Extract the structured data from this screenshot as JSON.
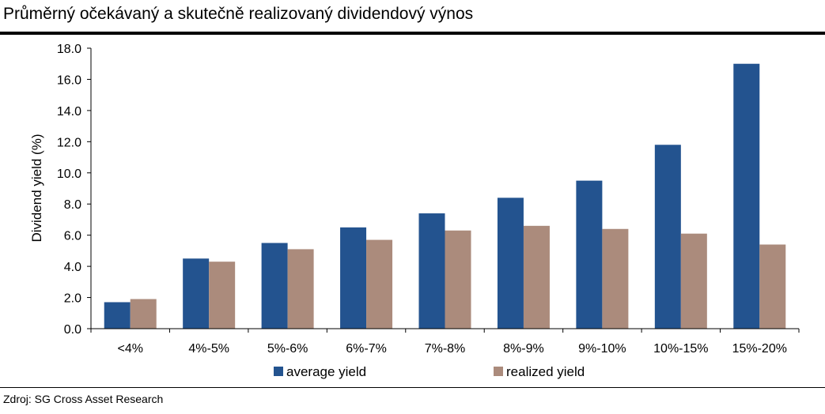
{
  "header": {
    "title": "Průměrný očekávaný a skutečně realizovaný dividendový výnos"
  },
  "footer": {
    "source": "Zdroj: SG Cross Asset Research"
  },
  "colors": {
    "average_yield": "#23538f",
    "realized_yield": "#ab8b7c"
  },
  "chart_data": {
    "type": "bar",
    "title": "",
    "xlabel": "",
    "ylabel": "Dividend yield (%)",
    "ylim": [
      0,
      18
    ],
    "yticks": [
      "0.0",
      "2.0",
      "4.0",
      "6.0",
      "8.0",
      "10.0",
      "12.0",
      "14.0",
      "16.0",
      "18.0"
    ],
    "grid": false,
    "legend": "bottom",
    "categories": [
      "<4%",
      "4%-5%",
      "5%-6%",
      "6%-7%",
      "7%-8%",
      "8%-9%",
      "9%-10%",
      "10%-15%",
      "15%-20%"
    ],
    "series": [
      {
        "name": "average yield",
        "values": [
          1.7,
          4.5,
          5.5,
          6.5,
          7.4,
          8.4,
          9.5,
          11.8,
          17.0
        ]
      },
      {
        "name": "realized yield",
        "values": [
          1.9,
          4.3,
          5.1,
          5.7,
          6.3,
          6.6,
          6.4,
          6.1,
          5.4
        ]
      }
    ]
  }
}
